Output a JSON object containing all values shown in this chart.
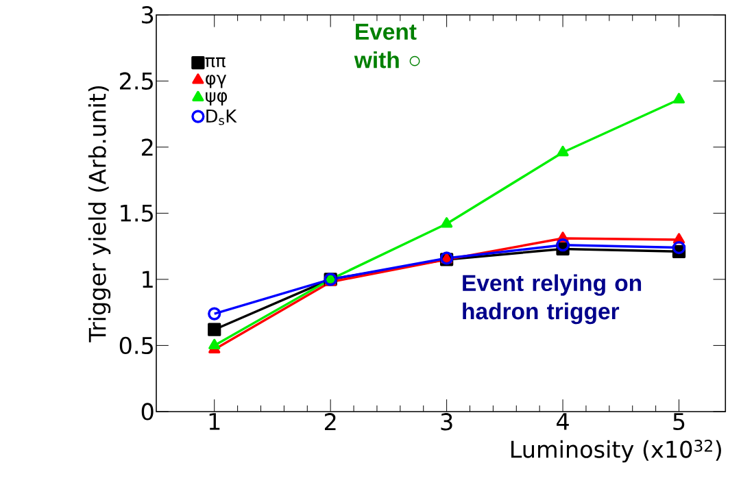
{
  "chart_data": {
    "type": "line",
    "xlabel": "Luminosity (x10$^{32}$)",
    "ylabel": "Trigger yield (Arb.unit)",
    "x": [
      1,
      2,
      3,
      4,
      5
    ],
    "series": [
      {
        "name": "ππ",
        "color": "#000000",
        "marker": "square",
        "values": [
          0.62,
          1.0,
          1.15,
          1.23,
          1.21
        ]
      },
      {
        "name": "φγ",
        "color": "#ff0000",
        "marker": "triangle",
        "values": [
          0.47,
          0.98,
          1.15,
          1.31,
          1.3
        ]
      },
      {
        "name": "ψφ",
        "color": "#00ee00",
        "marker": "triangle",
        "values": [
          0.5,
          1.0,
          1.42,
          1.96,
          2.36
        ]
      },
      {
        "name": "D$_{s}$K",
        "color": "#0000ff",
        "marker": "circle",
        "values": [
          0.74,
          1.0,
          1.16,
          1.26,
          1.24
        ]
      }
    ],
    "xlim": [
      0.5,
      5.4
    ],
    "ylim": [
      0,
      3
    ],
    "xticks": [
      1,
      2,
      3,
      4,
      5
    ],
    "yticks": [
      0,
      0.5,
      1,
      1.5,
      2,
      2.5,
      3
    ],
    "legend": "top left",
    "grid": false,
    "annotations": [
      "Event with ○",
      "Event relying on hadron trigger"
    ]
  }
}
